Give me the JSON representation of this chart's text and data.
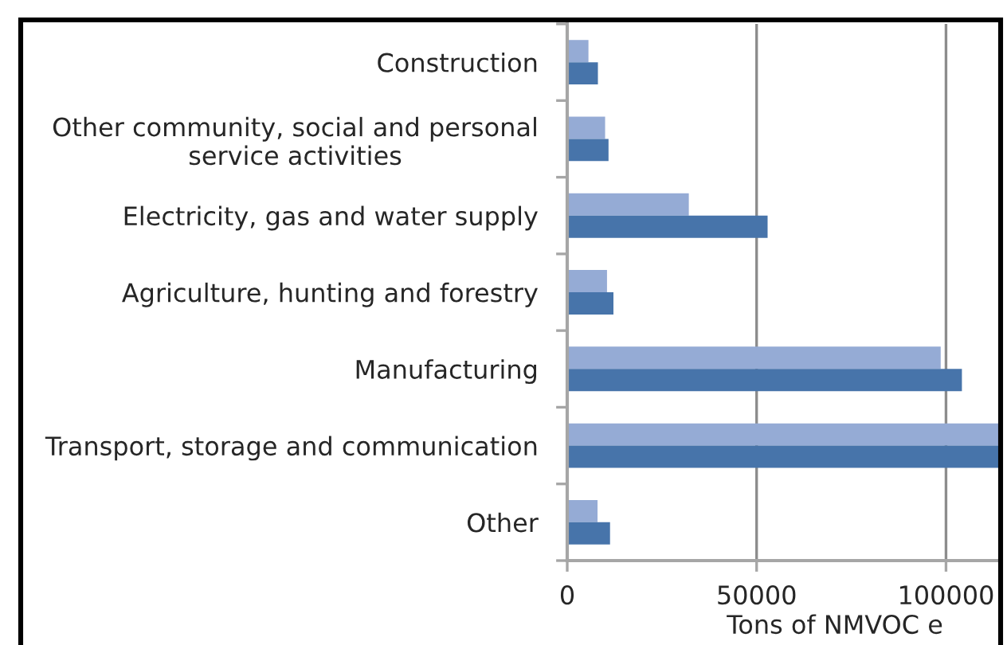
{
  "chart_data": {
    "type": "bar",
    "orientation": "horizontal",
    "categories": [
      "Construction",
      "Other community, social and personal\nservice activities",
      "Electricity, gas and water supply",
      "Agriculture, hunting and forestry",
      "Manufacturing",
      "Transport, storage and communication",
      "Other"
    ],
    "series": [
      {
        "color": "#95abd5",
        "values": [
          5600,
          10000,
          32100,
          10500,
          98600,
          114000,
          8000
        ]
      },
      {
        "color": "#4774aa",
        "values": [
          8100,
          10900,
          52900,
          12200,
          104200,
          114000,
          11300
        ]
      }
    ],
    "xlabel": "Tons of NMVOC e",
    "xlim": [
      0,
      114000
    ],
    "xticks": [
      0,
      50000,
      100000
    ],
    "grid": "x"
  }
}
